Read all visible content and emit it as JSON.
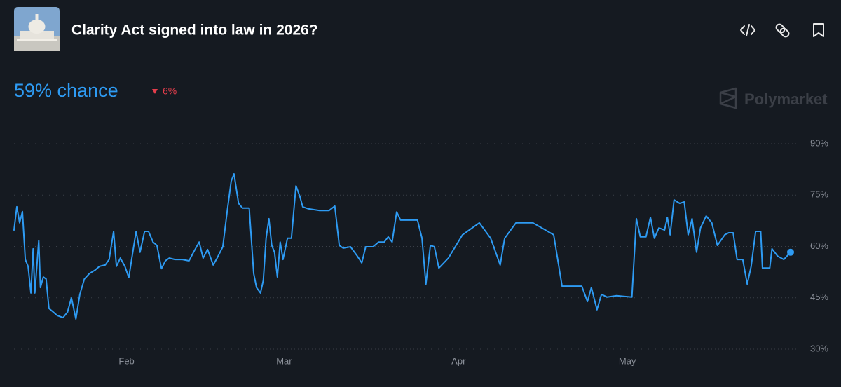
{
  "chart_data": {
    "type": "line",
    "title": "Clarity Act signed into law in 2026?",
    "headline": "59% chance",
    "change": "6%",
    "brand": "Polymarket",
    "color": "#2e9bf3",
    "change_color": "#e23d4b",
    "grid": true,
    "x": [
      0,
      0.5,
      1.0,
      1.5,
      2.0,
      2.5,
      3.0,
      3.4,
      3.7,
      4.4,
      4.7,
      5.2,
      5.7,
      6.2,
      7.0,
      7.7,
      8.7,
      9.5,
      10.2,
      11.0,
      11.7,
      12.5,
      13.4,
      14.4,
      15.2,
      16.2,
      16.9,
      17.7,
      18.2,
      18.9,
      19.7,
      20.4,
      20.9,
      21.7,
      22.4,
      23.2,
      23.9,
      24.7,
      25.4,
      26.2,
      26.9,
      27.6,
      28.6,
      29.9,
      31.1,
      31.9,
      32.9,
      33.6,
      34.4,
      35.4,
      36.1,
      37.1,
      37.9,
      38.6,
      39.1,
      39.9,
      40.6,
      41.8,
      42.6,
      43.1,
      43.8,
      44.3,
      44.8,
      45.3,
      45.8,
      46.3,
      46.8,
      47.3,
      47.8,
      48.6,
      49.3,
      50.1,
      50.8,
      51.3,
      52.3,
      54.3,
      56.0,
      57.0,
      57.8,
      58.5,
      59.8,
      61.0,
      61.8,
      62.5,
      63.8,
      64.8,
      65.8,
      66.5,
      67.2,
      68.0,
      68.7,
      71.7,
      72.5,
      73.2,
      74.0,
      74.7,
      75.5,
      77.2,
      79.7,
      82.7,
      84.7,
      86.4,
      87.2,
      89.2,
      92.2,
      95.9,
      97.4,
      100.9,
      101.9,
      102.6,
      103.6,
      104.4,
      105.4,
      107.1,
      109.8,
      110.6,
      111.3,
      112.3,
      113.1,
      113.8,
      114.6,
      115.6,
      116.1,
      116.6,
      117.3,
      118.3,
      119.1,
      119.8,
      120.5,
      121.3,
      122.0,
      123.0,
      124.0,
      125.0,
      126.3,
      127.0,
      127.8,
      128.5,
      129.5,
      130.3,
      131.0,
      131.8,
      132.7,
      133.0,
      134.3,
      134.7,
      135.7,
      136.8,
      138.0
    ],
    "values": [
      64.8,
      71.6,
      66.9,
      70.2,
      56.2,
      54.2,
      46.4,
      59.3,
      46.4,
      61.7,
      48.0,
      51.1,
      50.5,
      41.9,
      40.8,
      39.8,
      39.2,
      40.8,
      45.0,
      38.8,
      46.0,
      50.5,
      52.1,
      53.1,
      54.2,
      54.6,
      56.2,
      64.4,
      54.2,
      56.6,
      54.2,
      50.9,
      56.2,
      64.4,
      58.3,
      64.4,
      64.4,
      61.3,
      60.3,
      53.5,
      55.8,
      56.6,
      56.2,
      56.2,
      55.8,
      58.3,
      61.3,
      56.6,
      59.1,
      54.6,
      56.6,
      59.9,
      70.5,
      79.1,
      81.2,
      72.6,
      71.2,
      71.2,
      52.1,
      48.0,
      46.4,
      50.1,
      62.4,
      68.1,
      60.3,
      58.3,
      51.1,
      61.3,
      56.2,
      62.4,
      62.4,
      77.7,
      74.6,
      71.6,
      71.0,
      70.5,
      70.5,
      71.8,
      60.3,
      59.5,
      59.9,
      57.2,
      55.2,
      59.9,
      59.9,
      61.3,
      61.3,
      62.8,
      61.3,
      70.1,
      67.7,
      67.7,
      62.4,
      49.0,
      60.3,
      59.9,
      53.7,
      56.6,
      63.4,
      66.9,
      62.4,
      54.6,
      62.4,
      66.9,
      66.9,
      63.4,
      48.4,
      48.4,
      43.9,
      48.0,
      41.5,
      46.0,
      45.2,
      45.6,
      45.2,
      68.1,
      62.8,
      62.8,
      68.5,
      62.4,
      65.4,
      64.8,
      68.5,
      63.4,
      73.6,
      72.6,
      73.0,
      63.4,
      68.1,
      58.3,
      65.4,
      68.9,
      66.9,
      60.3,
      63.4,
      64.0,
      64.0,
      56.2,
      56.2,
      49.0,
      54.2,
      64.4,
      64.4,
      53.7,
      53.7,
      59.3,
      57.2,
      56.2,
      58.3
    ],
    "xlim": [
      0,
      138
    ],
    "xticks": [
      {
        "value": 20,
        "label": "Feb"
      },
      {
        "value": 48,
        "label": "Mar"
      },
      {
        "value": 79,
        "label": "Apr"
      },
      {
        "value": 109,
        "label": "May"
      }
    ],
    "ylim": [
      30,
      90
    ],
    "yticks": [
      {
        "value": 30,
        "label": "30%"
      },
      {
        "value": 45,
        "label": "45%"
      },
      {
        "value": 60,
        "label": "60%"
      },
      {
        "value": 75,
        "label": "75%"
      },
      {
        "value": 90,
        "label": "90%"
      }
    ]
  }
}
